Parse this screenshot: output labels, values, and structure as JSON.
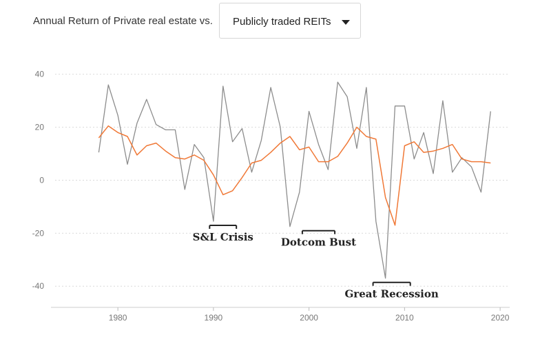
{
  "header": {
    "label": "Annual Return of Private real estate vs."
  },
  "dropdown": {
    "selected": "Publicly traded REITs",
    "icon": "caret-down-icon"
  },
  "chart_data": {
    "type": "line",
    "title": "Annual Return of Private real estate vs. Publicly traded REITs",
    "xlabel": "",
    "ylabel": "",
    "xlim": [
      1973,
      2021
    ],
    "ylim": [
      -48,
      42
    ],
    "xticks": [
      1980,
      1990,
      2000,
      2010,
      2020
    ],
    "yticks": [
      40,
      20,
      0,
      -20,
      -40
    ],
    "grid": true,
    "series": [
      {
        "name": "Publicly traded REITs",
        "color": "#8c8c8c",
        "x": [
          1978,
          1979,
          1980,
          1981,
          1982,
          1983,
          1984,
          1985,
          1986,
          1987,
          1988,
          1989,
          1990,
          1991,
          1992,
          1993,
          1994,
          1995,
          1996,
          1997,
          1998,
          1999,
          2000,
          2001,
          2002,
          2003,
          2004,
          2005,
          2006,
          2007,
          2008,
          2009,
          2010,
          2011,
          2012,
          2013,
          2014,
          2015,
          2016,
          2017,
          2018,
          2019
        ],
        "values": [
          10.5,
          36,
          24.5,
          6,
          21.5,
          30.5,
          21,
          19,
          19,
          -3.5,
          13.5,
          8.5,
          -15.5,
          35.5,
          14.5,
          19.5,
          3,
          15,
          35,
          20,
          -17.5,
          -4.5,
          26,
          13.5,
          4,
          37,
          31.5,
          12,
          35,
          -15.5,
          -37,
          28,
          28,
          8,
          18,
          2.5,
          30,
          3,
          8.5,
          5,
          -4.5,
          26
        ]
      },
      {
        "name": "Private real estate",
        "color": "#f07836",
        "x": [
          1978,
          1979,
          1980,
          1981,
          1982,
          1983,
          1984,
          1985,
          1986,
          1987,
          1988,
          1989,
          1990,
          1991,
          1992,
          1993,
          1994,
          1995,
          1996,
          1997,
          1998,
          1999,
          2000,
          2001,
          2002,
          2003,
          2004,
          2005,
          2006,
          2007,
          2008,
          2009,
          2010,
          2011,
          2012,
          2013,
          2014,
          2015,
          2016,
          2017,
          2018,
          2019
        ],
        "values": [
          16,
          20.5,
          18,
          16.5,
          9.5,
          13,
          14,
          11,
          8.5,
          8,
          9.5,
          7.5,
          2,
          -5.5,
          -4,
          1,
          6.5,
          7.5,
          10.5,
          14,
          16.5,
          11.5,
          12.5,
          7,
          7,
          9,
          14,
          20,
          16.5,
          15.5,
          -6.5,
          -17,
          13,
          14.5,
          10.5,
          11,
          12,
          13.5,
          8,
          7,
          7,
          6.5
        ]
      }
    ],
    "annotations": [
      {
        "label": "S&L Crisis",
        "x_start": 1989.6,
        "x_end": 1992.4,
        "y": -15.5
      },
      {
        "label": "Dotcom Bust",
        "x_start": 1999.3,
        "x_end": 2002.7,
        "y": -17.5
      },
      {
        "label": "Great Recession",
        "x_start": 2006.7,
        "x_end": 2010.6,
        "y": -37
      }
    ]
  }
}
